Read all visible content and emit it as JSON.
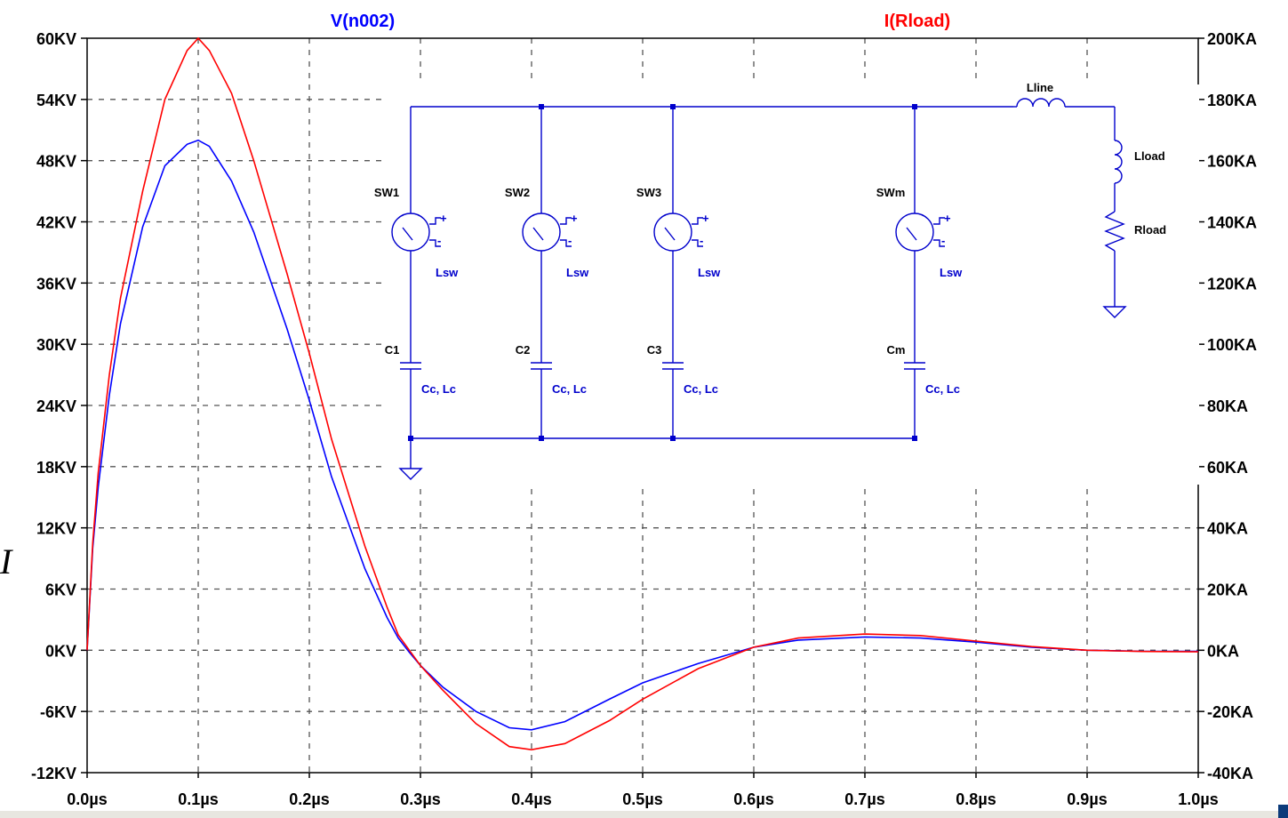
{
  "chart_data": {
    "type": "line",
    "title_left": "V(n002)",
    "title_right": "I(Rload)",
    "colors": {
      "voltage": "#0000ff",
      "current": "#ff0000"
    },
    "xlim": [
      0,
      1.0
    ],
    "x_unit": "µs",
    "x_ticks": [
      "0.0µs",
      "0.1µs",
      "0.2µs",
      "0.3µs",
      "0.4µs",
      "0.5µs",
      "0.6µs",
      "0.7µs",
      "0.8µs",
      "0.9µs",
      "1.0µs"
    ],
    "y_left": {
      "lim": [
        -12,
        60
      ],
      "unit": "KV",
      "ticks": [
        "60KV",
        "54KV",
        "48KV",
        "42KV",
        "36KV",
        "30KV",
        "24KV",
        "18KV",
        "12KV",
        "6KV",
        "0KV",
        "-6KV",
        "-12KV"
      ]
    },
    "y_right": {
      "lim": [
        -40,
        200
      ],
      "unit": "KA",
      "ticks": [
        "200KA",
        "180KA",
        "160KA",
        "140KA",
        "120KA",
        "100KA",
        "80KA",
        "60KA",
        "40KA",
        "20KA",
        "0KA",
        "-20KA",
        "-40KA"
      ]
    },
    "grid": true,
    "series": [
      {
        "name": "V(n002)",
        "axis": "left",
        "x": [
          0,
          0.005,
          0.01,
          0.02,
          0.03,
          0.05,
          0.07,
          0.09,
          0.1,
          0.11,
          0.13,
          0.15,
          0.18,
          0.2,
          0.22,
          0.25,
          0.27,
          0.28,
          0.29,
          0.3,
          0.32,
          0.35,
          0.38,
          0.4,
          0.43,
          0.47,
          0.5,
          0.55,
          0.6,
          0.64,
          0.7,
          0.75,
          0.8,
          0.85,
          0.9,
          0.95,
          1.0
        ],
        "y": [
          0,
          10,
          16,
          25,
          32,
          41.5,
          47.5,
          49.6,
          50,
          49.4,
          46,
          41,
          31.5,
          24.5,
          17,
          8,
          3.2,
          1.2,
          -0.2,
          -1.5,
          -3.6,
          -6,
          -7.6,
          -7.8,
          -7,
          -4.8,
          -3.2,
          -1.3,
          0.3,
          1,
          1.3,
          1.2,
          0.8,
          0.3,
          0,
          -0.1,
          -0.1
        ]
      },
      {
        "name": "I(Rload)",
        "axis": "right",
        "x": [
          0,
          0.005,
          0.01,
          0.02,
          0.03,
          0.05,
          0.07,
          0.09,
          0.1,
          0.11,
          0.13,
          0.15,
          0.18,
          0.2,
          0.22,
          0.25,
          0.27,
          0.28,
          0.29,
          0.3,
          0.32,
          0.35,
          0.38,
          0.4,
          0.43,
          0.47,
          0.5,
          0.55,
          0.6,
          0.64,
          0.7,
          0.75,
          0.8,
          0.85,
          0.9,
          0.95,
          1.0
        ],
        "y": [
          0,
          35,
          58,
          90,
          115,
          150,
          180,
          196,
          200,
          196,
          182,
          160,
          123,
          97,
          69,
          34,
          14,
          5,
          0,
          -5,
          -13,
          -24,
          -31.5,
          -32.5,
          -30.5,
          -23,
          -16,
          -6,
          1,
          4,
          5.3,
          4.8,
          3,
          1.2,
          0,
          -0.4,
          -0.5
        ]
      }
    ]
  },
  "schematic": {
    "switches": [
      "SW1",
      "SW2",
      "SW3",
      "SWm"
    ],
    "switch_inductors": [
      "Lsw",
      "Lsw",
      "Lsw",
      "Lsw"
    ],
    "capacitors": [
      "C1",
      "C2",
      "C3",
      "Cm"
    ],
    "capacitor_params": [
      "Cc, Lc",
      "Cc, Lc",
      "Cc, Lc",
      "Cc, Lc"
    ],
    "line_inductor": "Lline",
    "load_inductor": "Lload",
    "load_resistor": "Rload",
    "pin_plus": "+",
    "pin_minus": "-"
  },
  "stray_glyph": "I"
}
